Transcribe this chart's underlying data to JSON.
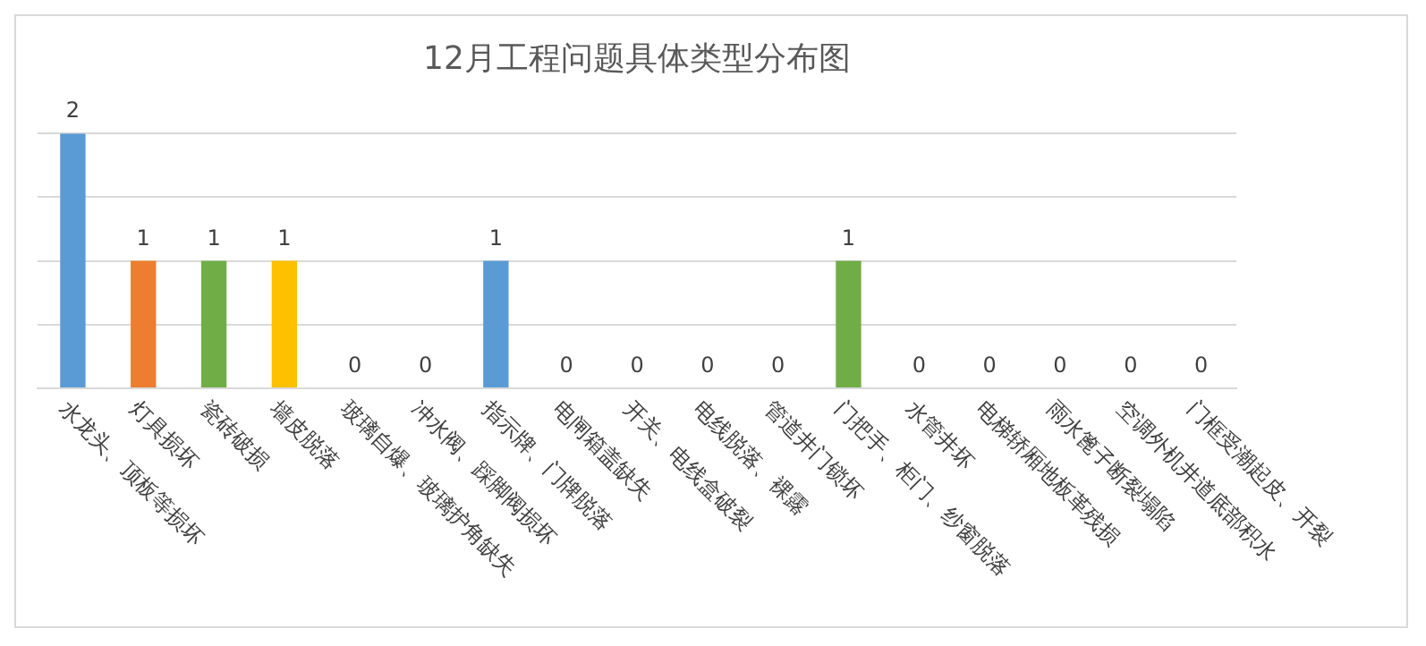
{
  "chart_data": {
    "type": "bar",
    "title": "12月工程问题具体类型分布图",
    "categories": [
      "水龙头、顶板等损坏",
      "灯具损坏",
      "瓷砖破损",
      "墙皮脱落",
      "玻璃自爆、玻璃护角缺失",
      "冲水阀、踩脚阀损坏",
      "指示牌、门牌脱落",
      "电闸箱盖缺失",
      "开关、电线盒破裂",
      "电线脱落、裸露",
      "管道井门锁坏",
      "门把手、柜门、纱窗脱落",
      "水管井坏",
      "电梯轿厢地板革残损",
      "雨水篦子断裂塌陷",
      "空调外机井道底部积水",
      "门框受潮起皮、开裂"
    ],
    "values": [
      2,
      1,
      1,
      1,
      0,
      0,
      1,
      0,
      0,
      0,
      0,
      1,
      0,
      0,
      0,
      0,
      0
    ],
    "colors": [
      "#5b9bd5",
      "#ed7d31",
      "#70ad47",
      "#ffc000",
      "#4472c4",
      "#a5a5a5",
      "#5b9bd5",
      "#ed7d31",
      "#a5a5a5",
      "#ffc000",
      "#4472c4",
      "#70ad47",
      "#5b9bd5",
      "#ed7d31",
      "#a5a5a5",
      "#ffc000",
      "#4472c4"
    ],
    "ylim": [
      0,
      2
    ],
    "yticks": [
      {
        "value": 0,
        "label": null
      },
      {
        "value": 0.5,
        "label": null
      },
      {
        "value": 1,
        "label": null
      },
      {
        "value": 1.5,
        "label": null
      },
      {
        "value": 2,
        "label": null
      }
    ],
    "grid": "y",
    "data_labels": true,
    "tick_labels": "x",
    "legend": false
  }
}
